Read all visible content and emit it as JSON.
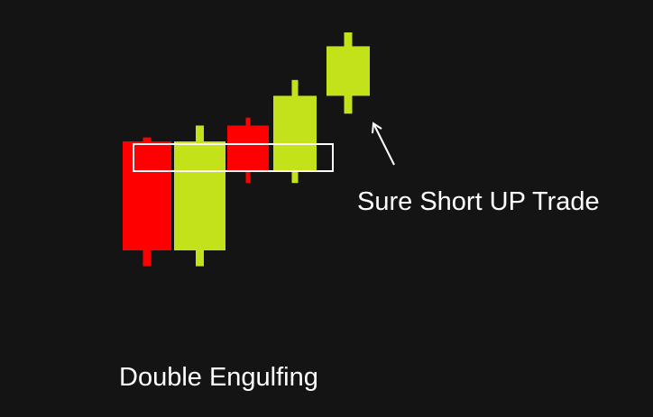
{
  "colors": {
    "background": "#141414",
    "bearish": "#ff0000",
    "bullish": "#c3e21a",
    "annotation": "#ffffff"
  },
  "annotations": {
    "trade_label": "Sure Short UP Trade",
    "pattern_label": "Double Engulfing"
  },
  "candles": [
    {
      "direction": "bearish",
      "open": 100,
      "close": 45,
      "high": 102,
      "low": 37
    },
    {
      "direction": "bullish",
      "open": 45,
      "close": 100,
      "high": 108,
      "low": 37
    },
    {
      "direction": "bearish",
      "open": 108,
      "close": 85,
      "high": 112,
      "low": 79
    },
    {
      "direction": "bullish",
      "open": 85,
      "close": 123,
      "high": 131,
      "low": 79
    },
    {
      "direction": "bullish",
      "open": 123,
      "close": 148,
      "high": 155,
      "low": 114
    }
  ],
  "highlight_zone": {
    "from": 85,
    "to": 100
  }
}
